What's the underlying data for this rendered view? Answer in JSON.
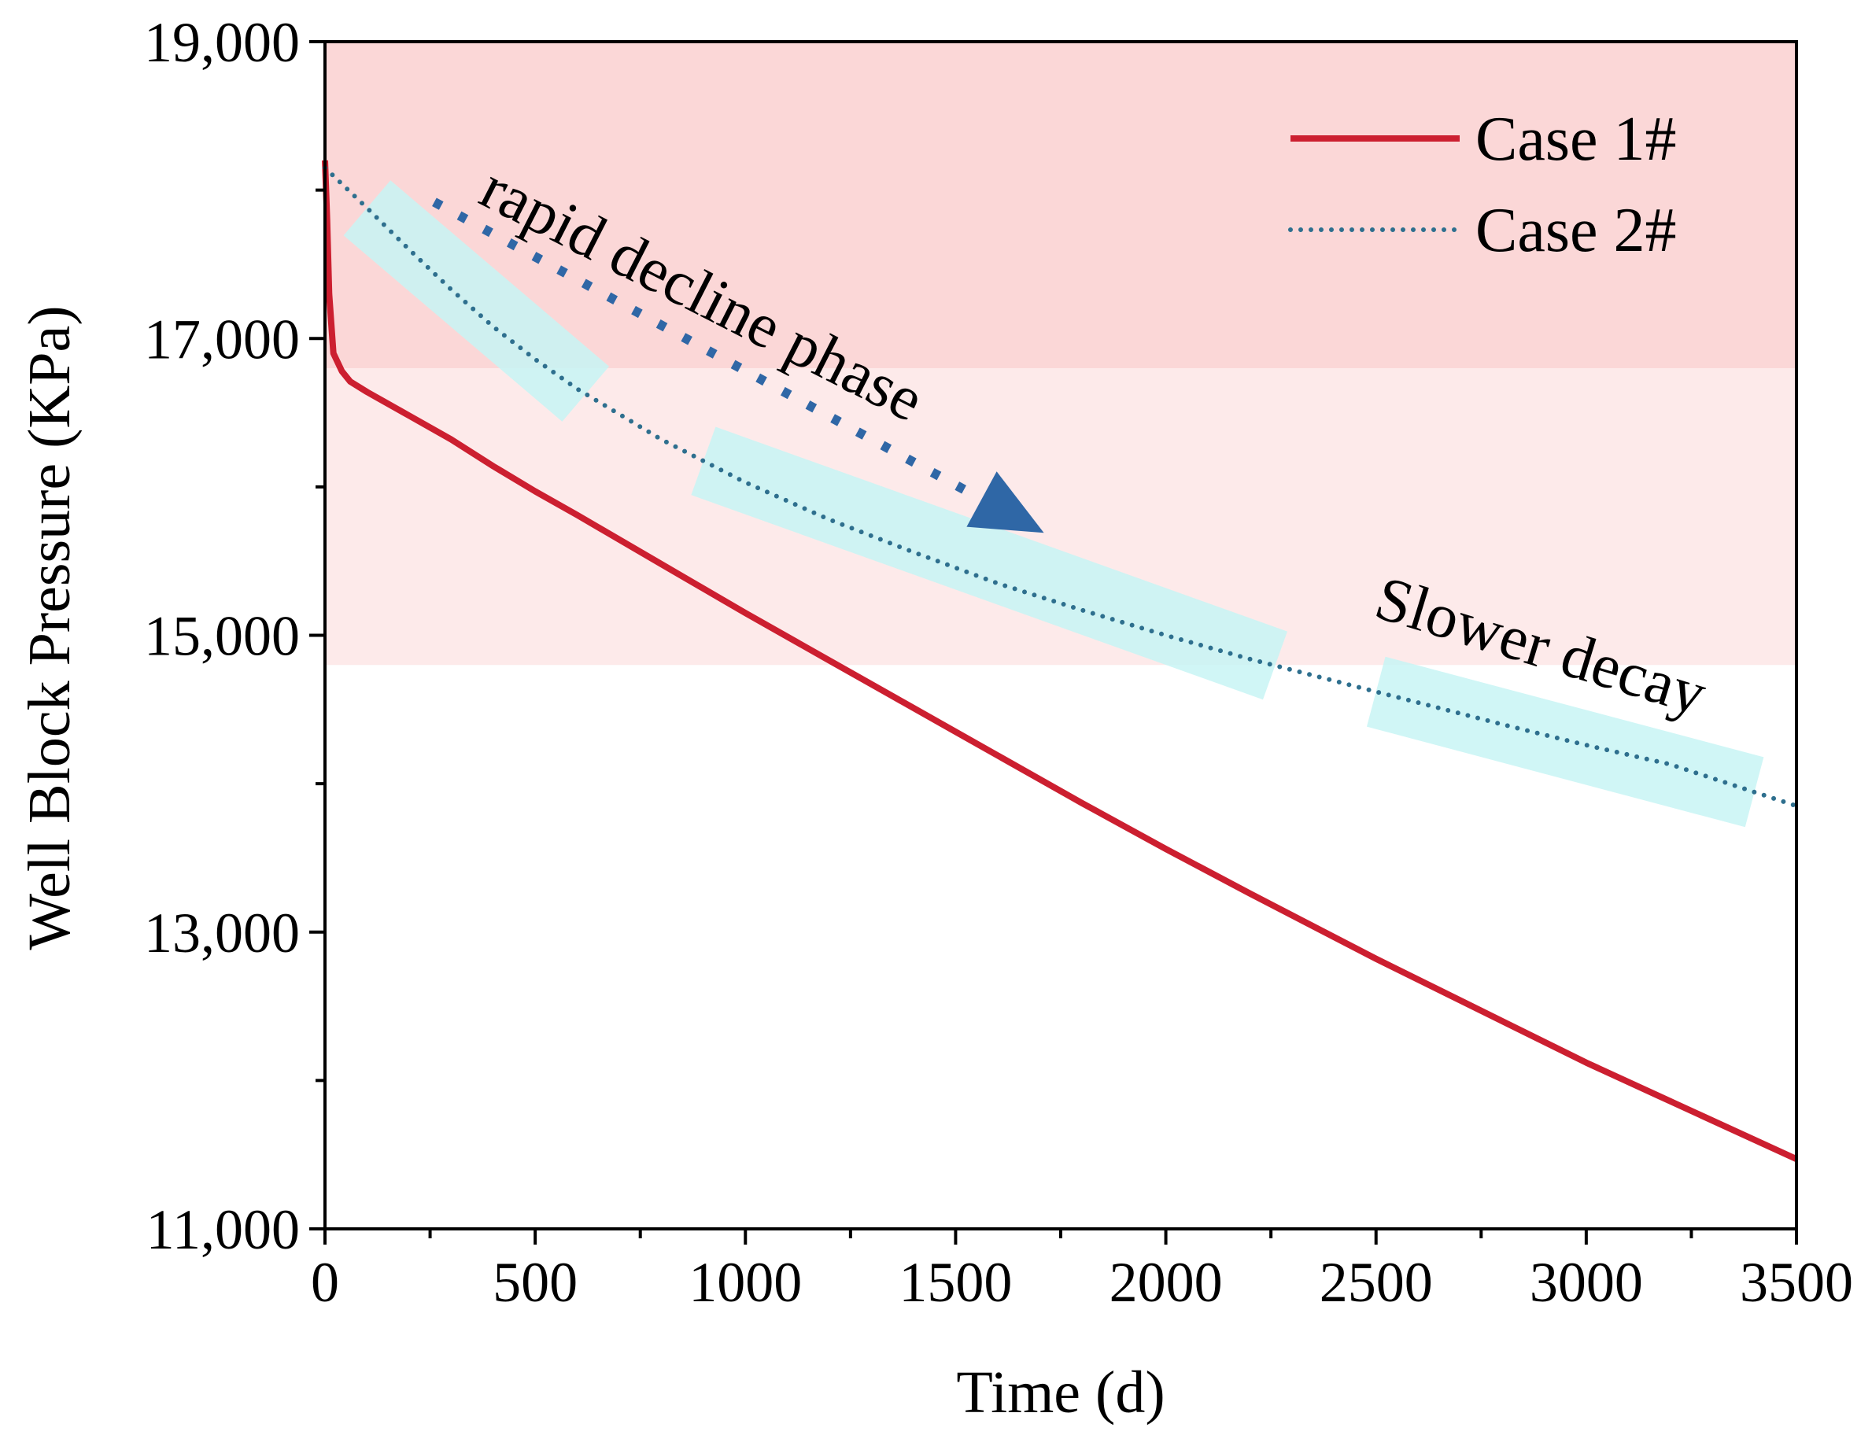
{
  "chart_data": {
    "type": "line",
    "xlabel": "Time (d)",
    "ylabel": "Well Block Pressure (KPa)",
    "xlim": [
      0,
      3500
    ],
    "ylim": [
      11000,
      19000
    ],
    "x_ticks": [
      0,
      500,
      1000,
      1500,
      2000,
      2500,
      3000,
      3500
    ],
    "x_tick_labels": [
      "0",
      "500",
      "1000",
      "1500",
      "2000",
      "2500",
      "3000",
      "3500"
    ],
    "y_ticks": [
      11000,
      13000,
      15000,
      17000,
      19000
    ],
    "y_tick_labels": [
      "11,000",
      "13,000",
      "15,000",
      "17,000",
      "19,000"
    ],
    "grid": false,
    "legend_position": "top-right",
    "shaded_bands": [
      {
        "y_from": 16800,
        "y_to": 19000,
        "color": "#fbd7d7"
      },
      {
        "y_from": 14800,
        "y_to": 16800,
        "color": "#fdeaea"
      }
    ],
    "series": [
      {
        "name": "Case 1#",
        "style": "solid",
        "color": "#cc1f30",
        "x": [
          0,
          5,
          10,
          20,
          40,
          60,
          100,
          200,
          300,
          400,
          500,
          600,
          800,
          1000,
          1200,
          1500,
          1800,
          2000,
          2200,
          2500,
          2800,
          3000,
          3200,
          3500
        ],
        "y": [
          18200,
          17800,
          17300,
          16900,
          16780,
          16710,
          16640,
          16480,
          16320,
          16140,
          15970,
          15810,
          15480,
          15150,
          14830,
          14350,
          13870,
          13560,
          13260,
          12820,
          12400,
          12120,
          11860,
          11470
        ]
      },
      {
        "name": "Case 2#",
        "style": "dotted",
        "color": "#2e6f8e",
        "x": [
          0,
          100,
          200,
          300,
          400,
          500,
          600,
          800,
          1000,
          1200,
          1400,
          1600,
          1800,
          2000,
          2200,
          2500,
          2800,
          3000,
          3200,
          3500
        ],
        "y": [
          18150,
          17880,
          17600,
          17330,
          17080,
          16860,
          16660,
          16320,
          16030,
          15780,
          15560,
          15350,
          15170,
          15000,
          14840,
          14620,
          14400,
          14260,
          14130,
          13850
        ]
      }
    ],
    "annotations": [
      {
        "text": "rapid decline phase",
        "x": 360,
        "y": 17920,
        "rotation": 27
      },
      {
        "text": "Slower decay",
        "x": 2490,
        "y": 15130,
        "rotation": 17
      }
    ],
    "highlight_bands": [
      {
        "x_from": 100,
        "x_to": 620,
        "color": "#c8f5f5"
      },
      {
        "x_from": 900,
        "x_to": 2260,
        "color": "#c8f5f5"
      },
      {
        "x_from": 2500,
        "x_to": 3400,
        "color": "#c8f5f5"
      }
    ],
    "arrow": {
      "x_from": 260,
      "y_from": 17920,
      "x_to": 1710,
      "y_to": 15690,
      "color": "#2f67a6",
      "style": "dotted"
    }
  }
}
